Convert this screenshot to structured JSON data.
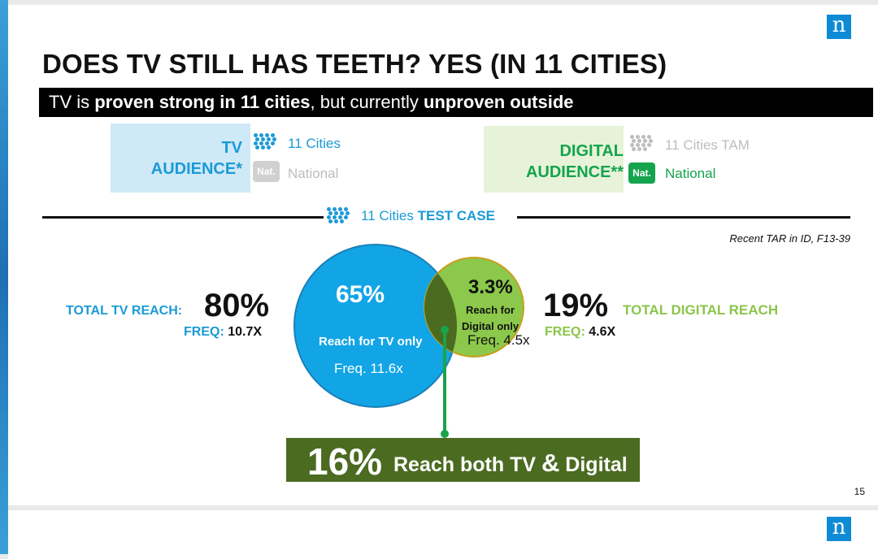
{
  "slide": {
    "title": "DOES TV STILL HAS TEETH? YES (IN 11 CITIES)",
    "subtitle": {
      "part1": "TV is ",
      "bold1": "proven strong in 11 cities",
      "part2": ", but currently ",
      "bold2": "unproven outside"
    },
    "logo_letter": "n",
    "page_number": "15"
  },
  "tv_audience": {
    "label_line1": "TV",
    "label_line2": "AUDIENCE*",
    "legend": [
      {
        "icon": "dots-grid-icon",
        "text": "11 Cities",
        "color": "#1b9ad6"
      },
      {
        "icon": "national-badge-icon",
        "badge": "Nat.",
        "text": "National",
        "color": "#bdbdbd"
      }
    ]
  },
  "digital_audience": {
    "label_line1": "DIGITAL",
    "label_line2": "AUDIENCE**",
    "legend": [
      {
        "icon": "dots-grid-icon",
        "text": "11 Cities TAM",
        "color": "#bdbdbd"
      },
      {
        "icon": "national-badge-icon",
        "badge": "Nat.",
        "text": "National",
        "color": "#14a44d"
      }
    ]
  },
  "test_case": {
    "prefix": "11 Cities ",
    "bold": "TEST CASE"
  },
  "footnote": "Recent TAR in ID, F13-39",
  "tv_reach": {
    "label": "TOTAL TV REACH:",
    "value": "80%",
    "freq_label": "FREQ:",
    "freq_value": "10.7X"
  },
  "digital_reach": {
    "label": "TOTAL DIGITAL REACH",
    "value": "19%",
    "freq_label": "FREQ:",
    "freq_value": "4.6X"
  },
  "venn": {
    "tv_only": {
      "value": "65%",
      "label": "Reach for TV only",
      "freq": "Freq. 11.6x",
      "color": "#12a5e6"
    },
    "digital_only": {
      "value": "3.3%",
      "label_line1": "Reach for",
      "label_line2": "Digital only",
      "freq": "Freq. 4.5x",
      "color": "#8cc84b"
    },
    "overlap_color": "#4b6b21",
    "both": {
      "value": "16%",
      "label_part1": "Reach both TV ",
      "label_amp": "&",
      "label_part2": " Digital"
    }
  }
}
